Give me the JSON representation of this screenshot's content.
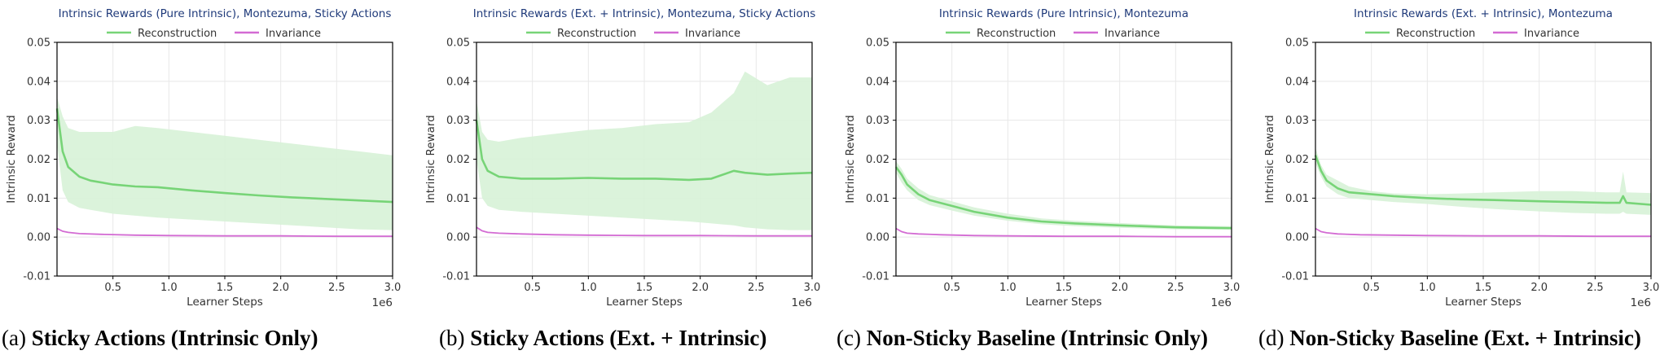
{
  "colors": {
    "reconstruction": "#77d477",
    "reconstruction_band": "#d7f2d7",
    "invariance": "#d36bd3",
    "title": "#1f3a7a",
    "axis_text": "#333333",
    "grid": "#e8e8e8"
  },
  "captions": [
    {
      "prefix": "(a) ",
      "text": "Sticky Actions (Intrinsic Only)"
    },
    {
      "prefix": "(b) ",
      "text": "Sticky Actions (Ext. + Intrinsic)"
    },
    {
      "prefix": "(c) ",
      "text": "Non-Sticky Baseline (Intrinsic Only)"
    },
    {
      "prefix": "(d) ",
      "text": "Non-Sticky Baseline (Ext. + Intrinsic)"
    }
  ],
  "chart_data": [
    {
      "type": "line",
      "title": "Intrinsic Rewards (Pure Intrinsic), Montezuma, Sticky Actions",
      "xlabel": "Learner Steps",
      "ylabel": "Intrinsic Reward",
      "x_multiplier_label": "1e6",
      "xlim": [
        0,
        3.0
      ],
      "ylim": [
        -0.01,
        0.05
      ],
      "x_ticks": [
        "0.5",
        "1.0",
        "1.5",
        "2.0",
        "2.5",
        "3.0"
      ],
      "y_ticks": [
        "-0.01",
        "0.00",
        "0.01",
        "0.02",
        "0.03",
        "0.04",
        "0.05"
      ],
      "grid": true,
      "legend_position": "top-center",
      "series": [
        {
          "name": "Reconstruction",
          "x": [
            0,
            0.05,
            0.1,
            0.2,
            0.3,
            0.5,
            0.7,
            0.9,
            1.2,
            1.5,
            1.8,
            2.1,
            2.4,
            2.7,
            3.0
          ],
          "values": [
            0.033,
            0.022,
            0.018,
            0.0155,
            0.0145,
            0.0135,
            0.013,
            0.0128,
            0.012,
            0.0113,
            0.0107,
            0.0102,
            0.0098,
            0.0094,
            0.009
          ],
          "band_low": [
            0.024,
            0.012,
            0.009,
            0.0075,
            0.007,
            0.006,
            0.0055,
            0.005,
            0.0045,
            0.004,
            0.0035,
            0.003,
            0.0025,
            0.002,
            0.0018
          ],
          "band_high": [
            0.036,
            0.031,
            0.028,
            0.027,
            0.027,
            0.027,
            0.0285,
            0.028,
            0.027,
            0.026,
            0.025,
            0.024,
            0.023,
            0.022,
            0.021
          ]
        },
        {
          "name": "Invariance",
          "x": [
            0,
            0.05,
            0.1,
            0.2,
            0.4,
            0.7,
            1.0,
            1.5,
            2.0,
            2.5,
            3.0
          ],
          "values": [
            0.0022,
            0.0015,
            0.0012,
            0.0009,
            0.0007,
            0.0005,
            0.0004,
            0.0003,
            0.0003,
            0.0002,
            0.0002
          ]
        }
      ]
    },
    {
      "type": "line",
      "title": "Intrinsic Rewards (Ext. + Intrinsic), Montezuma, Sticky Actions",
      "xlabel": "Learner Steps",
      "ylabel": "Intrinsic Reward",
      "x_multiplier_label": "1e6",
      "xlim": [
        0,
        3.0
      ],
      "ylim": [
        -0.01,
        0.05
      ],
      "x_ticks": [
        "0.5",
        "1.0",
        "1.5",
        "2.0",
        "2.5",
        "3.0"
      ],
      "y_ticks": [
        "-0.01",
        "0.00",
        "0.01",
        "0.02",
        "0.03",
        "0.04",
        "0.05"
      ],
      "grid": true,
      "legend_position": "top-center",
      "series": [
        {
          "name": "Reconstruction",
          "x": [
            0,
            0.05,
            0.1,
            0.2,
            0.4,
            0.7,
            1.0,
            1.3,
            1.6,
            1.9,
            2.1,
            2.3,
            2.4,
            2.6,
            2.8,
            3.0
          ],
          "values": [
            0.03,
            0.02,
            0.017,
            0.0155,
            0.015,
            0.015,
            0.0152,
            0.015,
            0.015,
            0.0147,
            0.015,
            0.017,
            0.0165,
            0.016,
            0.0163,
            0.0165
          ],
          "band_low": [
            0.02,
            0.01,
            0.008,
            0.007,
            0.0065,
            0.006,
            0.0055,
            0.005,
            0.0045,
            0.004,
            0.0035,
            0.003,
            0.0025,
            0.002,
            0.0018,
            0.0018
          ],
          "band_high": [
            0.035,
            0.027,
            0.025,
            0.0245,
            0.0255,
            0.0265,
            0.0275,
            0.028,
            0.029,
            0.0295,
            0.032,
            0.037,
            0.0425,
            0.039,
            0.041,
            0.041
          ]
        },
        {
          "name": "Invariance",
          "x": [
            0,
            0.05,
            0.1,
            0.2,
            0.4,
            0.7,
            1.0,
            1.5,
            2.0,
            2.5,
            3.0
          ],
          "values": [
            0.0025,
            0.0016,
            0.0012,
            0.001,
            0.0008,
            0.0006,
            0.0005,
            0.0004,
            0.0004,
            0.0003,
            0.0003
          ]
        }
      ]
    },
    {
      "type": "line",
      "title": "Intrinsic Rewards (Pure Intrinsic), Montezuma",
      "xlabel": "Learner Steps",
      "ylabel": "Intrinsic Reward",
      "x_multiplier_label": "1e6",
      "xlim": [
        0,
        3.0
      ],
      "ylim": [
        -0.01,
        0.05
      ],
      "x_ticks": [
        "0.5",
        "1.0",
        "1.5",
        "2.0",
        "2.5",
        "3.0"
      ],
      "y_ticks": [
        "-0.01",
        "0.00",
        "0.01",
        "0.02",
        "0.03",
        "0.04",
        "0.05"
      ],
      "grid": true,
      "legend_position": "top-center",
      "series": [
        {
          "name": "Reconstruction",
          "x": [
            0,
            0.05,
            0.1,
            0.2,
            0.3,
            0.5,
            0.7,
            1.0,
            1.3,
            1.6,
            2.0,
            2.5,
            3.0
          ],
          "values": [
            0.018,
            0.016,
            0.0135,
            0.011,
            0.0095,
            0.008,
            0.0065,
            0.005,
            0.004,
            0.0035,
            0.003,
            0.0025,
            0.0023
          ],
          "band_low": [
            0.0165,
            0.014,
            0.012,
            0.0095,
            0.0082,
            0.0068,
            0.0055,
            0.0042,
            0.0033,
            0.0028,
            0.0024,
            0.002,
            0.0019
          ],
          "band_high": [
            0.0195,
            0.0175,
            0.015,
            0.0125,
            0.0108,
            0.0092,
            0.0076,
            0.006,
            0.0048,
            0.0042,
            0.0036,
            0.003,
            0.0028
          ]
        },
        {
          "name": "Invariance",
          "x": [
            0,
            0.05,
            0.1,
            0.2,
            0.4,
            0.7,
            1.0,
            1.5,
            2.0,
            2.5,
            3.0
          ],
          "values": [
            0.0022,
            0.0014,
            0.001,
            0.0008,
            0.0006,
            0.0004,
            0.0003,
            0.0002,
            0.0002,
            0.0001,
            0.0001
          ]
        }
      ]
    },
    {
      "type": "line",
      "title": "Intrinsic Rewards (Ext. + Intrinsic), Montezuma",
      "xlabel": "Learner Steps",
      "ylabel": "Intrinsic Reward",
      "x_multiplier_label": "1e6",
      "xlim": [
        0,
        3.0
      ],
      "ylim": [
        -0.01,
        0.05
      ],
      "x_ticks": [
        "0.5",
        "1.0",
        "1.5",
        "2.0",
        "2.5",
        "3.0"
      ],
      "y_ticks": [
        "-0.01",
        "0.00",
        "0.01",
        "0.02",
        "0.03",
        "0.04",
        "0.05"
      ],
      "grid": true,
      "legend_position": "top-center",
      "series": [
        {
          "name": "Reconstruction",
          "x": [
            0,
            0.05,
            0.1,
            0.2,
            0.3,
            0.5,
            0.7,
            1.0,
            1.3,
            1.6,
            2.0,
            2.3,
            2.6,
            2.72,
            2.75,
            2.78,
            3.0
          ],
          "values": [
            0.021,
            0.017,
            0.0145,
            0.0125,
            0.0115,
            0.011,
            0.0105,
            0.01,
            0.0097,
            0.0095,
            0.0092,
            0.009,
            0.0088,
            0.0088,
            0.0105,
            0.0088,
            0.0083
          ],
          "band_low": [
            0.019,
            0.0155,
            0.013,
            0.011,
            0.01,
            0.0095,
            0.009,
            0.0085,
            0.0078,
            0.0072,
            0.0066,
            0.0062,
            0.006,
            0.006,
            0.0065,
            0.006,
            0.0057
          ],
          "band_high": [
            0.023,
            0.0185,
            0.016,
            0.0145,
            0.013,
            0.0118,
            0.0112,
            0.011,
            0.0112,
            0.0115,
            0.0118,
            0.0118,
            0.0115,
            0.0115,
            0.0168,
            0.0115,
            0.0113
          ]
        },
        {
          "name": "Invariance",
          "x": [
            0,
            0.05,
            0.1,
            0.2,
            0.4,
            0.7,
            1.0,
            1.5,
            2.0,
            2.5,
            3.0
          ],
          "values": [
            0.0022,
            0.0014,
            0.0011,
            0.0008,
            0.0006,
            0.0005,
            0.0004,
            0.0003,
            0.0003,
            0.0002,
            0.0002
          ]
        }
      ]
    }
  ]
}
